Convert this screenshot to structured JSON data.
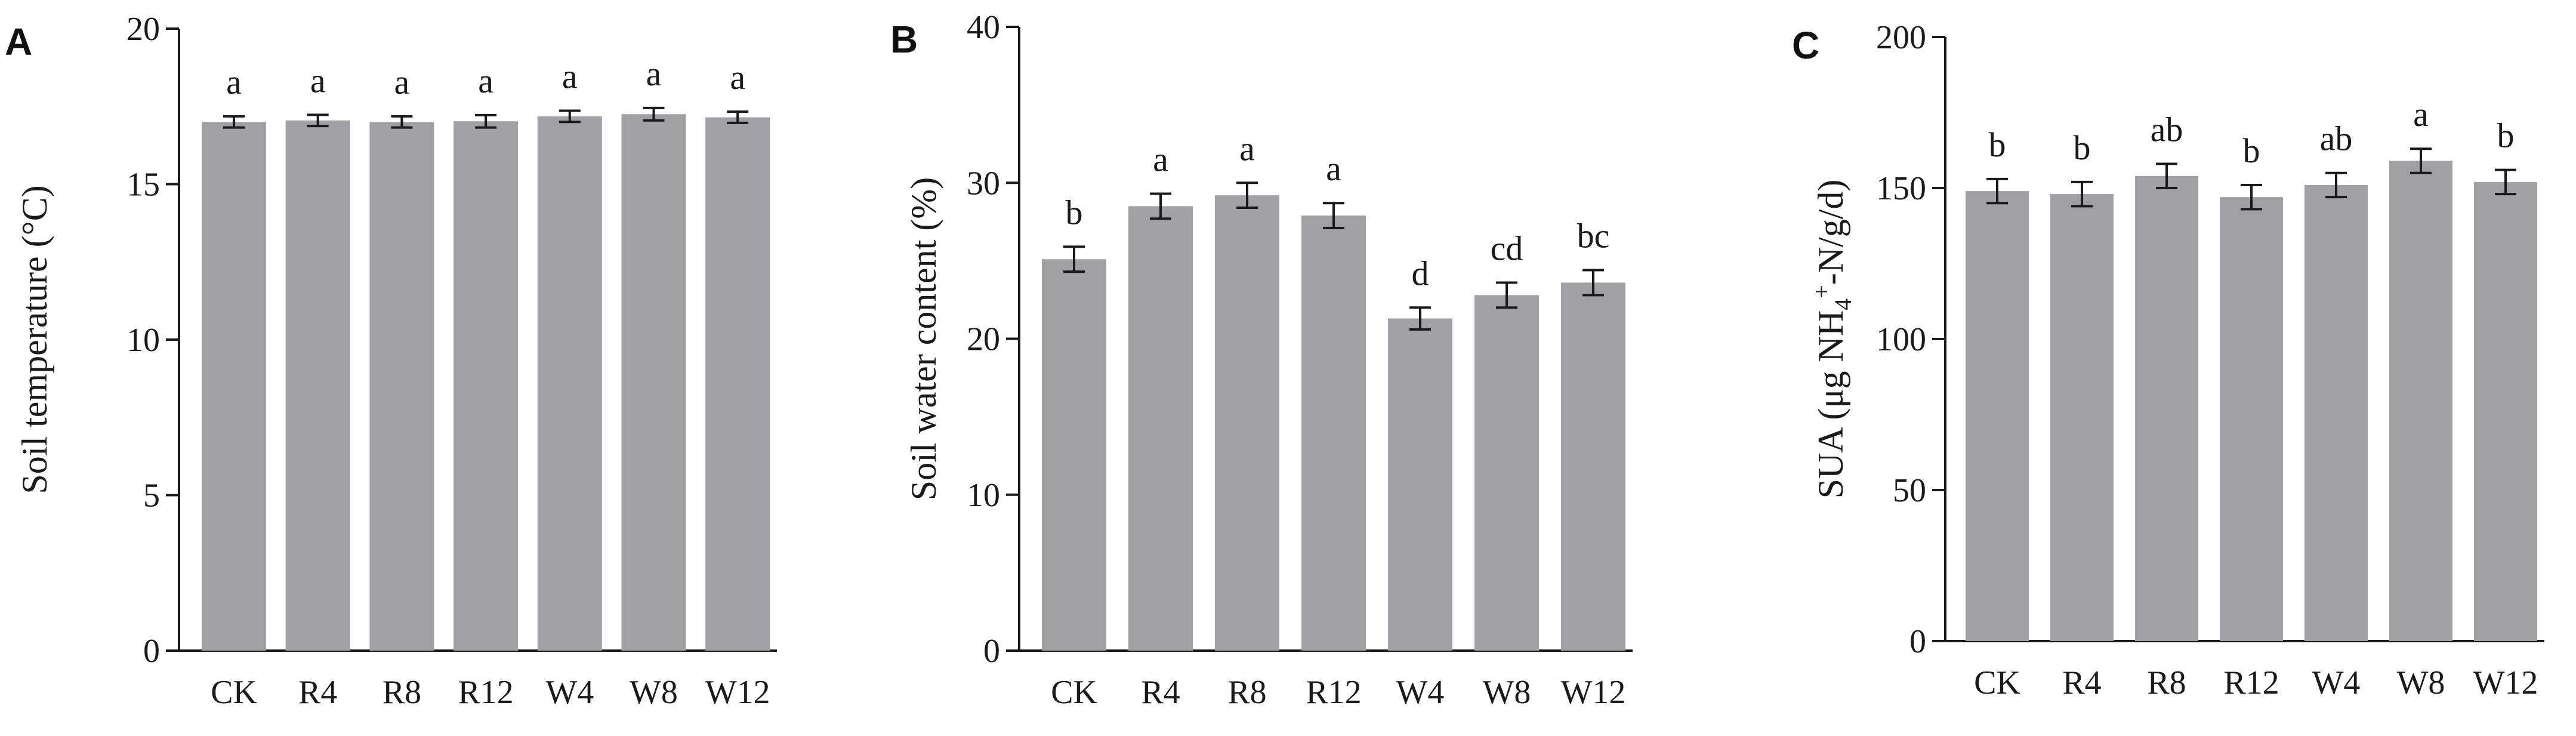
{
  "chart_data": [
    {
      "type": "bar",
      "panel_label": "A",
      "categories": [
        "CK",
        "R4",
        "R8",
        "R12",
        "W4",
        "W8",
        "W12"
      ],
      "values": [
        17.0,
        17.05,
        17.0,
        17.02,
        17.18,
        17.25,
        17.15
      ],
      "errors": [
        0.18,
        0.18,
        0.18,
        0.2,
        0.18,
        0.2,
        0.18
      ],
      "significance": [
        "a",
        "a",
        "a",
        "a",
        "a",
        "a",
        "a"
      ],
      "ylabel": "Soil temperature (°C)",
      "ylim": [
        0,
        20
      ],
      "yticks": [
        0,
        5,
        10,
        15,
        20
      ],
      "bar_color": "#a1a0a5",
      "grid": false
    },
    {
      "type": "bar",
      "panel_label": "B",
      "categories": [
        "CK",
        "R4",
        "R8",
        "R12",
        "W4",
        "W8",
        "W12"
      ],
      "values": [
        25.1,
        28.5,
        29.2,
        27.9,
        21.3,
        22.8,
        23.6
      ],
      "errors": [
        0.8,
        0.8,
        0.8,
        0.8,
        0.7,
        0.8,
        0.8
      ],
      "significance": [
        "b",
        "a",
        "a",
        "a",
        "d",
        "cd",
        "bc"
      ],
      "ylabel": "Soil water content (%)",
      "ylim": [
        0,
        40
      ],
      "yticks": [
        0,
        10,
        20,
        30,
        40
      ],
      "bar_color": "#a1a0a5",
      "grid": false
    },
    {
      "type": "bar",
      "panel_label": "C",
      "categories": [
        "CK",
        "R4",
        "R8",
        "R12",
        "W4",
        "W8",
        "W12"
      ],
      "values": [
        149,
        148,
        154,
        147,
        151,
        159,
        152
      ],
      "errors": [
        4,
        4,
        4,
        4,
        4,
        4,
        4
      ],
      "significance": [
        "b",
        "b",
        "ab",
        "b",
        "ab",
        "a",
        "b"
      ],
      "ylabel": "SUA (μg NH4+-N/g/d)",
      "ylim": [
        0,
        200
      ],
      "yticks": [
        0,
        50,
        100,
        150,
        200
      ],
      "bar_color": "#a1a0a5",
      "grid": false
    }
  ]
}
